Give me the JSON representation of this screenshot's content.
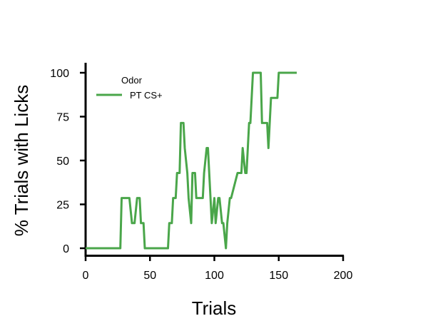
{
  "chart_data": {
    "type": "line",
    "xlabel": "Trials",
    "ylabel": "% Trials with Licks",
    "xlim": [
      0,
      200
    ],
    "ylim": [
      0,
      100
    ],
    "xticks": [
      0,
      50,
      100,
      150,
      200
    ],
    "yticks": [
      0,
      25,
      50,
      75,
      100
    ],
    "grid": false,
    "legend": {
      "title": "Odor",
      "placement": "top-left"
    },
    "series": [
      {
        "name": "PT CS+",
        "color": "#4aa64a",
        "x": [
          0,
          27,
          28,
          34,
          36,
          38,
          40,
          42,
          43,
          45,
          46,
          64,
          65,
          67,
          68,
          70,
          71,
          73,
          74,
          76,
          77,
          79,
          80,
          82,
          83,
          85,
          86,
          88,
          89,
          91,
          92,
          94,
          95,
          97,
          98,
          100,
          101,
          103,
          104,
          106,
          107,
          109,
          110,
          112,
          113,
          118,
          119,
          121,
          122,
          124,
          125,
          127,
          128,
          130,
          131,
          136,
          137,
          141,
          142,
          144,
          145,
          149,
          150,
          164
        ],
        "y": [
          0,
          0,
          28.6,
          28.6,
          14.3,
          14.3,
          28.6,
          28.6,
          14.3,
          14.3,
          0,
          0,
          14.3,
          14.3,
          28.6,
          28.6,
          42.9,
          42.9,
          71.4,
          71.4,
          57.1,
          42.9,
          28.6,
          14.3,
          42.9,
          42.9,
          28.6,
          28.6,
          28.6,
          28.6,
          42.9,
          57.1,
          57.1,
          28.6,
          14.3,
          28.6,
          14.3,
          28.6,
          28.6,
          14.3,
          14.3,
          0,
          14.3,
          28.6,
          28.6,
          42.9,
          42.9,
          42.9,
          57.1,
          42.9,
          42.9,
          71.4,
          71.4,
          100,
          100,
          100,
          71.4,
          71.4,
          57.1,
          85.7,
          85.7,
          85.7,
          100,
          100
        ]
      }
    ]
  }
}
